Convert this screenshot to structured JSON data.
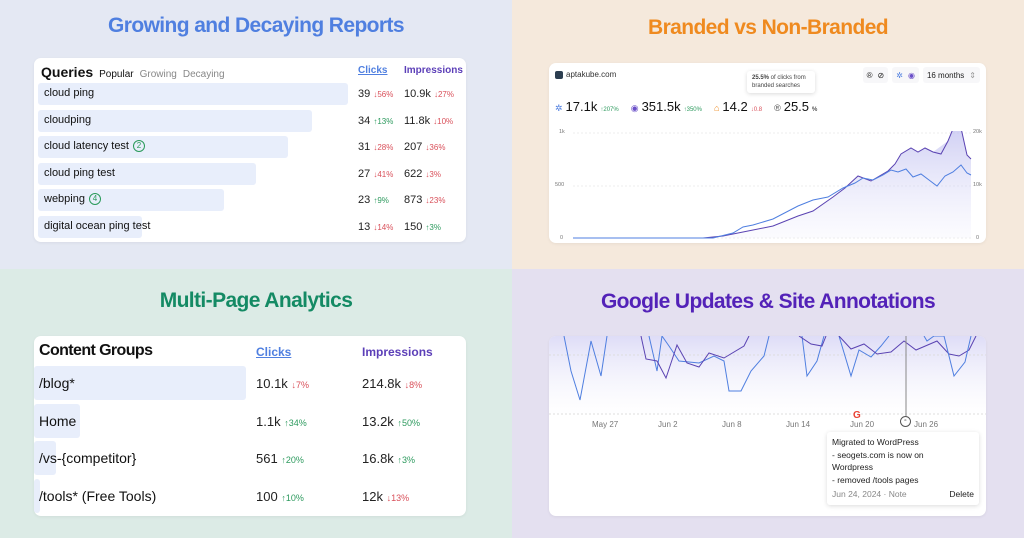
{
  "quadrants": {
    "growing": {
      "title": "Growing and Decaying Reports",
      "card_title": "Queries",
      "tabs": [
        "Popular",
        "Growing",
        "Decaying"
      ],
      "active_tab": "Popular",
      "columns": {
        "clicks": "Clicks",
        "impressions": "Impressions"
      },
      "rows": [
        {
          "query": "cloud ping",
          "badge": "",
          "clicks": "39",
          "clicks_change": "↓56%",
          "clicks_dir": "dn",
          "impr": "10.9k",
          "impr_change": "↓27%",
          "impr_dir": "dn",
          "bar": 310
        },
        {
          "query": "cloudping",
          "badge": "",
          "clicks": "34",
          "clicks_change": "↑13%",
          "clicks_dir": "up",
          "impr": "11.8k",
          "impr_change": "↓10%",
          "impr_dir": "dn",
          "bar": 274
        },
        {
          "query": "cloud latency test",
          "badge": "2",
          "clicks": "31",
          "clicks_change": "↓28%",
          "clicks_dir": "dn",
          "impr": "207",
          "impr_change": "↓36%",
          "impr_dir": "dn",
          "bar": 250
        },
        {
          "query": "cloud ping test",
          "badge": "",
          "clicks": "27",
          "clicks_change": "↓41%",
          "clicks_dir": "dn",
          "impr": "622",
          "impr_change": "↓3%",
          "impr_dir": "dn",
          "bar": 218
        },
        {
          "query": "webping",
          "badge": "4",
          "clicks": "23",
          "clicks_change": "↑9%",
          "clicks_dir": "up",
          "impr": "873",
          "impr_change": "↓23%",
          "impr_dir": "dn",
          "bar": 186
        },
        {
          "query": "digital ocean ping test",
          "badge": "",
          "clicks": "13",
          "clicks_change": "↓14%",
          "clicks_dir": "dn",
          "impr": "150",
          "impr_change": "↑3%",
          "impr_dir": "up",
          "bar": 104
        }
      ]
    },
    "branded": {
      "title": "Branded vs Non-Branded",
      "site": "aptakube.com",
      "tooltip_bold": "25.5%",
      "tooltip_text": " of clicks from branded searches",
      "range": "16 months",
      "stats": [
        {
          "icon": "clicks-icon",
          "glyph": "✲",
          "value": "17.1k",
          "change": "↑207%",
          "dir": "up",
          "color": "#4f7fe0"
        },
        {
          "icon": "eye-icon",
          "glyph": "◉",
          "value": "351.5k",
          "change": "↑350%",
          "dir": "up",
          "color": "#6a4fc8"
        },
        {
          "icon": "position-icon",
          "glyph": "⌂",
          "value": "14.2",
          "change": "↓0.8",
          "dir": "dn",
          "color": "#ef8a1f"
        },
        {
          "icon": "branded-icon",
          "glyph": "®",
          "value": "25.5",
          "change": "%",
          "dir": "",
          "color": "#555"
        }
      ],
      "axis_left": [
        "1k",
        "500",
        "0"
      ],
      "axis_right": [
        "20k",
        "10k",
        "0"
      ]
    },
    "multipage": {
      "title": "Multi-Page Analytics",
      "card_title": "Content Groups",
      "columns": {
        "clicks": "Clicks",
        "impressions": "Impressions"
      },
      "rows": [
        {
          "group": "/blog*",
          "clicks": "10.1k",
          "clicks_change": "↓7%",
          "clicks_dir": "dn",
          "impr": "214.8k",
          "impr_change": "↓8%",
          "impr_dir": "dn",
          "bar": 212
        },
        {
          "group": "Home",
          "clicks": "1.1k",
          "clicks_change": "↑34%",
          "clicks_dir": "up",
          "impr": "13.2k",
          "impr_change": "↑50%",
          "impr_dir": "up",
          "bar": 46
        },
        {
          "group": "/vs-{competitor}",
          "clicks": "561",
          "clicks_change": "↑20%",
          "clicks_dir": "up",
          "impr": "16.8k",
          "impr_change": "↑3%",
          "impr_dir": "up",
          "bar": 22
        },
        {
          "group": "/tools* (Free Tools)",
          "clicks": "100",
          "clicks_change": "↑10%",
          "clicks_dir": "up",
          "impr": "12k",
          "impr_change": "↓13%",
          "impr_dir": "dn",
          "bar": 6
        }
      ]
    },
    "annotations": {
      "title": "Google Updates & Site Annotations",
      "x_labels": [
        "May 27",
        "Jun 2",
        "Jun 8",
        "Jun 14",
        "Jun 20",
        "Jun 26"
      ],
      "note": {
        "title": "Migrated to WordPress",
        "line1": "- seogets.com is now on",
        "line2": "Wordpress",
        "line3": "- removed /tools pages",
        "date": "Jun 24, 2024 · Note",
        "delete": "Delete"
      }
    }
  }
}
